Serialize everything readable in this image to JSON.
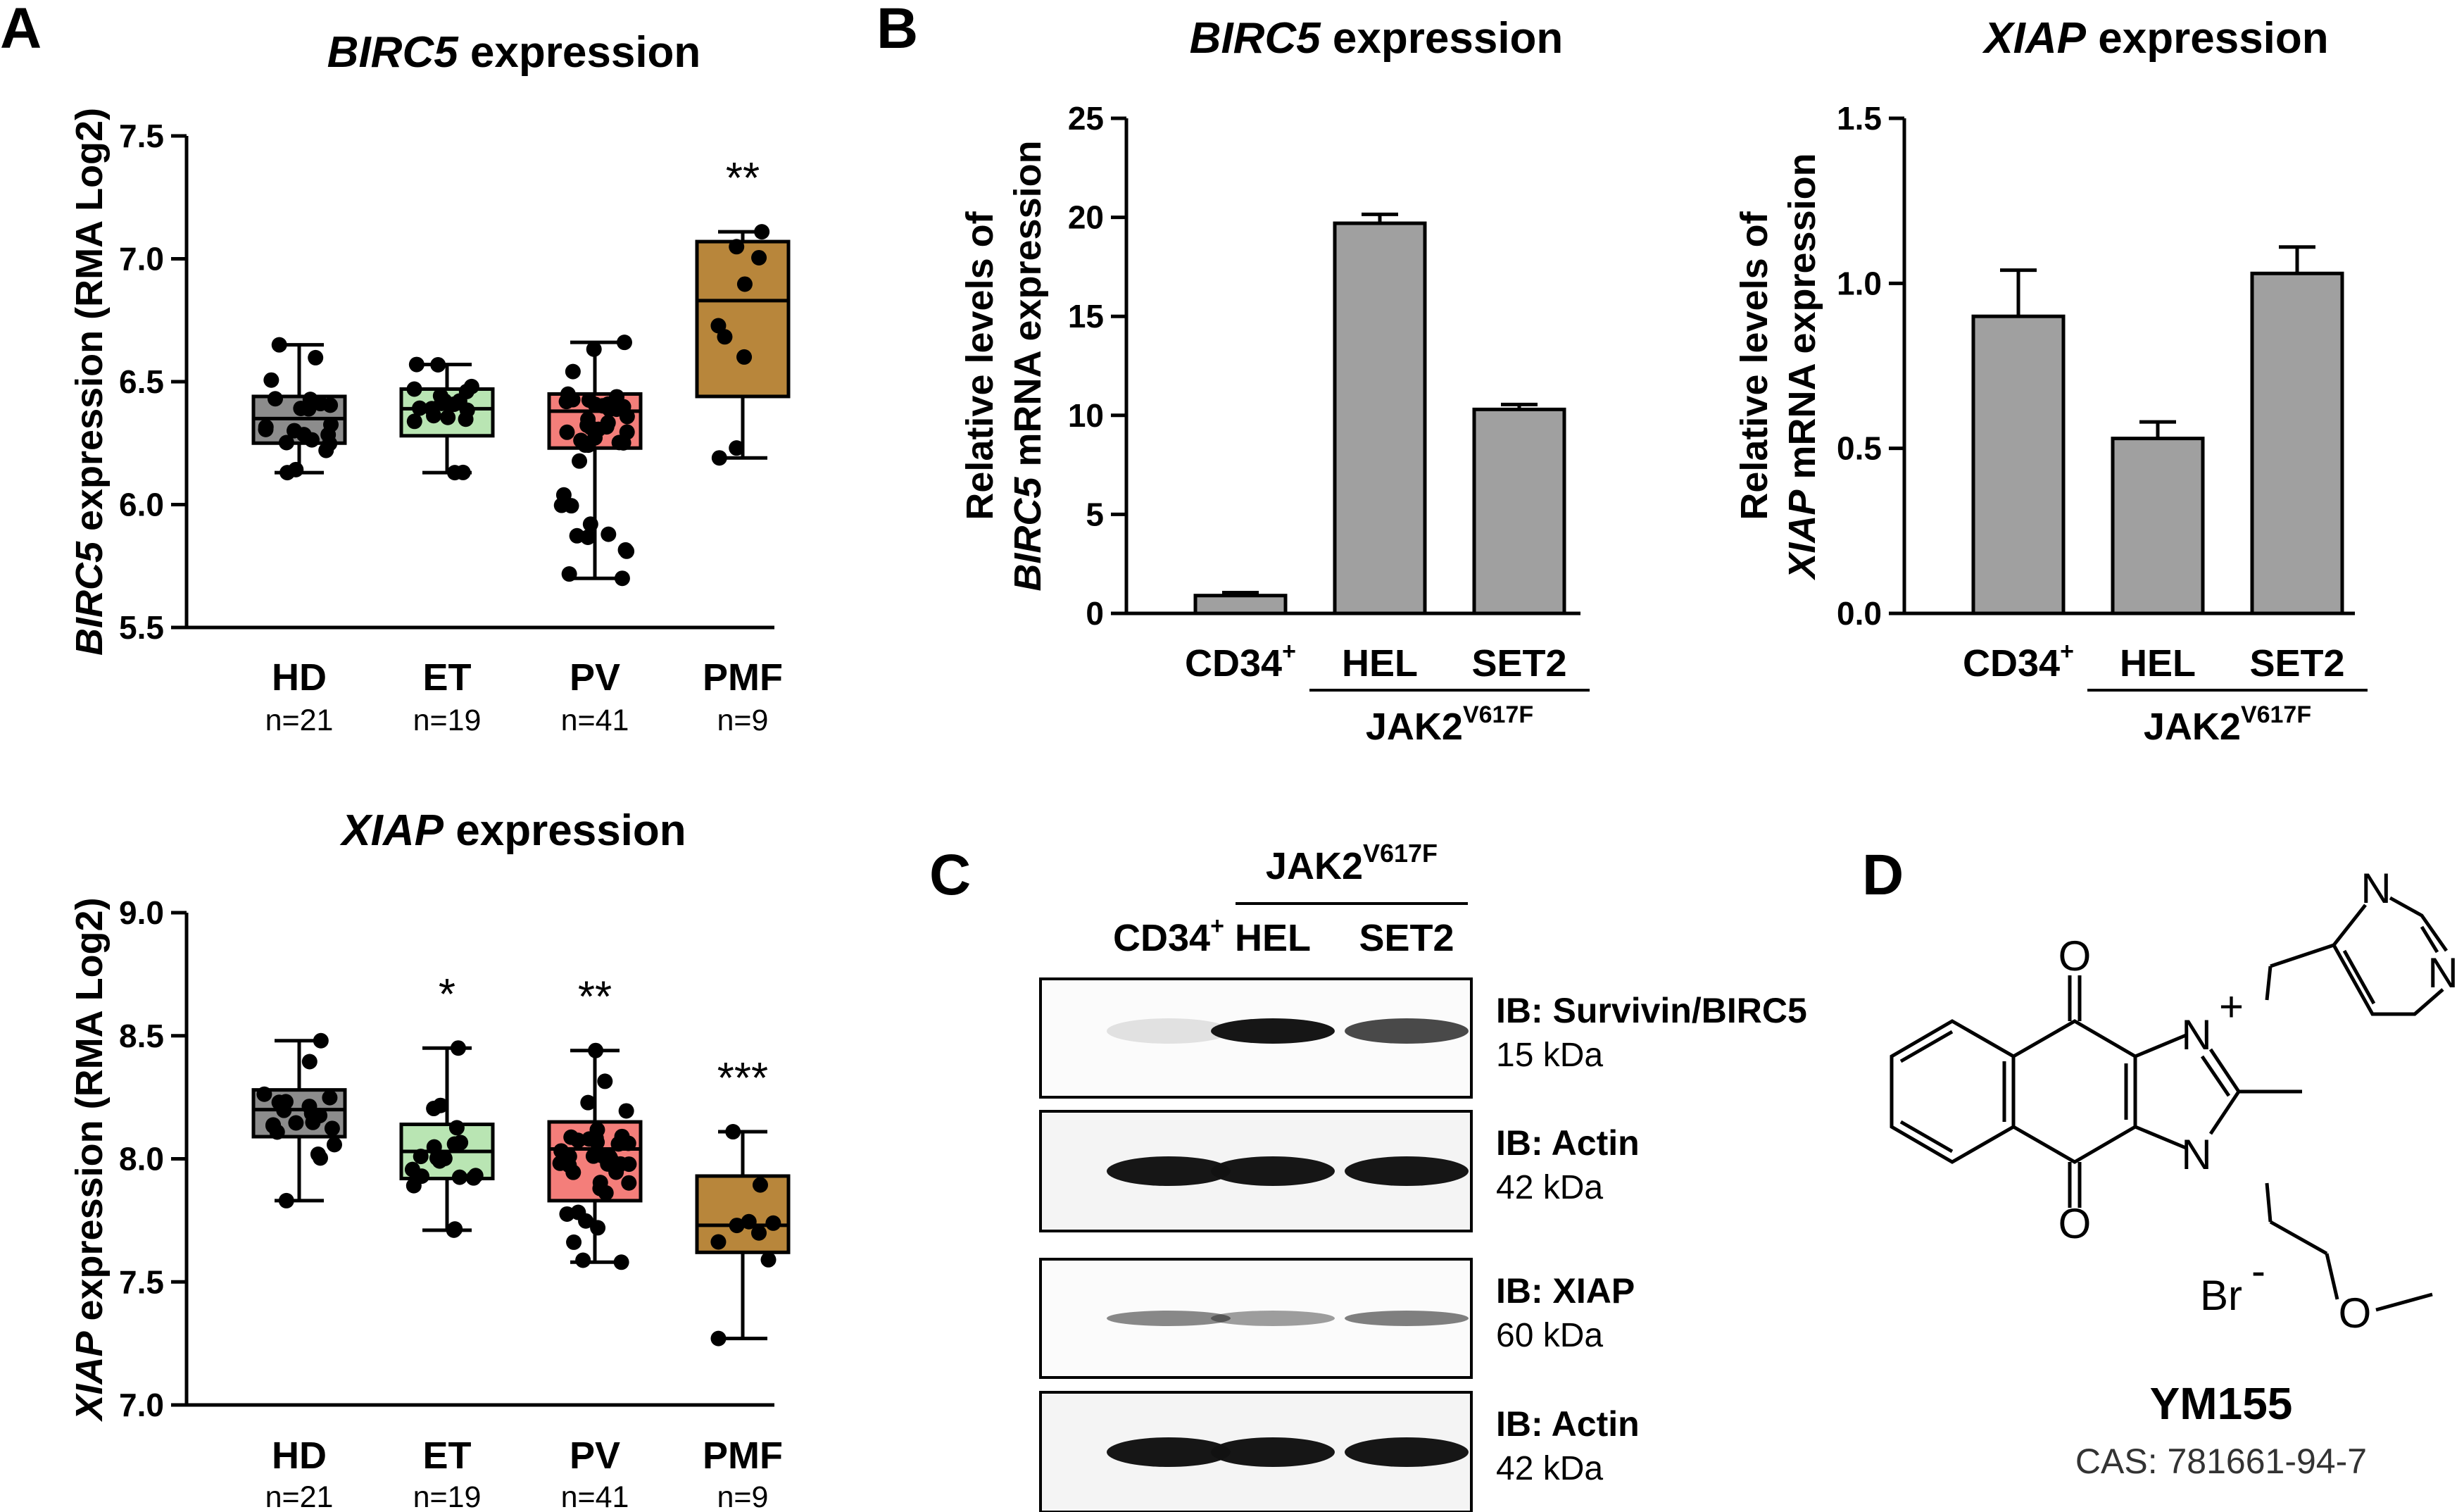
{
  "panels": {
    "A": "A",
    "B": "B",
    "C": "C",
    "D": "D"
  },
  "colors": {
    "HD": "#8c8c8c",
    "ET": "#b9e5b3",
    "PV": "#f47e7a",
    "PMF": "#b8863b",
    "bar": "#a0a0a0"
  },
  "chart_data": [
    {
      "id": "A-top",
      "type": "box",
      "title": {
        "gene": "BIRC5",
        "rest": " expression"
      },
      "ylabel": {
        "gene": "BIRC5",
        "rest": " expression (RMA Log2)"
      },
      "ylim": [
        5.5,
        7.5
      ],
      "yticks": [
        "5.5",
        "6.0",
        "6.5",
        "7.0",
        "7.5"
      ],
      "categories": [
        "HD",
        "ET",
        "PV",
        "PMF"
      ],
      "n_labels": [
        "n=21",
        "n=19",
        "n=41",
        "n=9"
      ],
      "boxes": [
        {
          "name": "HD",
          "min": 6.13,
          "q1": 6.25,
          "median": 6.35,
          "q3": 6.44,
          "max": 6.65
        },
        {
          "name": "ET",
          "min": 6.13,
          "q1": 6.28,
          "median": 6.39,
          "q3": 6.47,
          "max": 6.57
        },
        {
          "name": "PV",
          "min": 5.7,
          "q1": 6.23,
          "median": 6.38,
          "q3": 6.45,
          "max": 6.66
        },
        {
          "name": "PMF",
          "min": 6.19,
          "q1": 6.44,
          "median": 6.83,
          "q3": 7.07,
          "max": 7.11
        }
      ],
      "significance": [
        "",
        "",
        "",
        "**"
      ]
    },
    {
      "id": "A-bottom",
      "type": "box",
      "title": {
        "gene": "XIAP",
        "rest": " expression"
      },
      "ylabel": {
        "gene": "XIAP",
        "rest": " expression (RMA Log2)"
      },
      "ylim": [
        7.0,
        9.0
      ],
      "yticks": [
        "7.0",
        "7.5",
        "8.0",
        "8.5",
        "9.0"
      ],
      "categories": [
        "HD",
        "ET",
        "PV",
        "PMF"
      ],
      "n_labels": [
        "n=21",
        "n=19",
        "n=41",
        "n=9"
      ],
      "boxes": [
        {
          "name": "HD",
          "min": 7.83,
          "q1": 8.09,
          "median": 8.2,
          "q3": 8.28,
          "max": 8.48
        },
        {
          "name": "ET",
          "min": 7.71,
          "q1": 7.92,
          "median": 8.03,
          "q3": 8.14,
          "max": 8.45
        },
        {
          "name": "PV",
          "min": 7.58,
          "q1": 7.83,
          "median": 8.04,
          "q3": 8.15,
          "max": 8.44
        },
        {
          "name": "PMF",
          "min": 7.27,
          "q1": 7.62,
          "median": 7.73,
          "q3": 7.93,
          "max": 8.11
        }
      ],
      "significance": [
        "",
        "*",
        "**",
        "***"
      ]
    },
    {
      "id": "B-left",
      "type": "bar",
      "title": {
        "gene": "BIRC5",
        "rest": " expression"
      },
      "ylabel": {
        "line1": "Relative levels of",
        "gene": "BIRC5",
        "rest": " mRNA expression"
      },
      "ylim": [
        0,
        25
      ],
      "yticks": [
        "0",
        "5",
        "10",
        "15",
        "20",
        "25"
      ],
      "categories": [
        {
          "base": "CD34",
          "sup": "+"
        },
        {
          "base": "HEL",
          "sup": ""
        },
        {
          "base": "SET2",
          "sup": ""
        }
      ],
      "values": [
        0.9,
        19.7,
        10.3
      ],
      "errors": [
        0.15,
        0.45,
        0.25
      ],
      "group_label": {
        "base": "JAK2",
        "sup": "V617F"
      }
    },
    {
      "id": "B-right",
      "type": "bar",
      "title": {
        "gene": "XIAP",
        "rest": " expression"
      },
      "ylabel": {
        "line1": "Relative levels of",
        "gene": "XIAP",
        "rest": " mRNA expression"
      },
      "ylim": [
        0,
        1.5
      ],
      "yticks": [
        "0.0",
        "0.5",
        "1.0",
        "1.5"
      ],
      "categories": [
        {
          "base": "CD34",
          "sup": "+"
        },
        {
          "base": "HEL",
          "sup": ""
        },
        {
          "base": "SET2",
          "sup": ""
        }
      ],
      "values": [
        0.9,
        0.53,
        1.03
      ],
      "errors": [
        0.14,
        0.05,
        0.08
      ],
      "group_label": {
        "base": "JAK2",
        "sup": "V617F"
      }
    }
  ],
  "western": {
    "group_label": {
      "base": "JAK2",
      "sup": "V617F"
    },
    "lanes": [
      {
        "base": "CD34",
        "sup": "+"
      },
      {
        "base": "HEL",
        "sup": ""
      },
      {
        "base": "SET2",
        "sup": ""
      }
    ],
    "blots": [
      {
        "ib": "IB: Survivin/BIRC5",
        "kda": "15 kDa",
        "intensity": [
          0.03,
          1.0,
          0.75
        ]
      },
      {
        "ib": "IB: Actin",
        "kda": "42 kDa",
        "intensity": [
          1.0,
          1.0,
          1.0
        ]
      },
      {
        "ib": "IB: XIAP",
        "kda": "60 kDa",
        "intensity": [
          0.45,
          0.35,
          0.5
        ]
      },
      {
        "ib": "IB: Actin",
        "kda": "42 kDa",
        "intensity": [
          1.0,
          1.0,
          1.0
        ]
      }
    ]
  },
  "compound": {
    "name": "YM155",
    "cas": "CAS: 781661-94-7",
    "atoms": {
      "O_top": "O",
      "O_bottom": "O",
      "N_plus": "N",
      "plus": "+",
      "N_lower": "N",
      "N_pyr1": "N",
      "N_pyr2": "N",
      "O_methoxy": "O",
      "Br": "Br",
      "minus": "-"
    }
  }
}
